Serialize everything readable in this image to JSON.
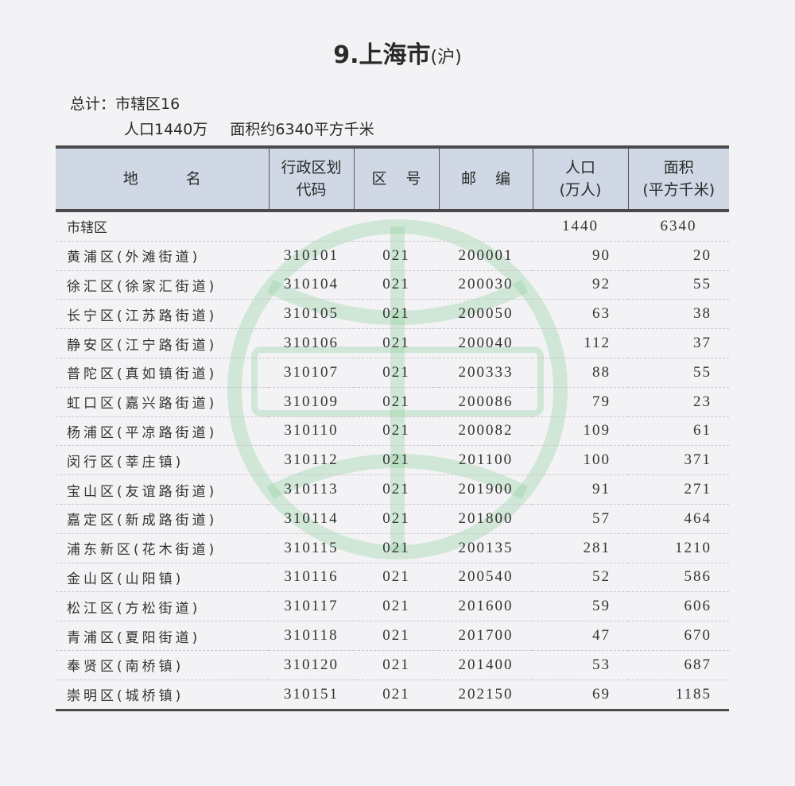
{
  "title": {
    "main": "9.上海市",
    "abbr": "(沪)"
  },
  "summary": {
    "line1": "总计：市辖区16",
    "population": "人口1440万",
    "area": "面积约6340平方千米"
  },
  "watermark": {
    "color": "#8fcf9a",
    "shape": "globe-seal-icon"
  },
  "table": {
    "headers": {
      "name": "地名",
      "code_line1": "行政区划",
      "code_line2": "代码",
      "area_code": "区 号",
      "zip": "邮 编",
      "pop_line1": "人口",
      "pop_line2": "(万人)",
      "area_line1": "面积",
      "area_line2": "(平方千米)"
    },
    "total": {
      "name": "市辖区",
      "population": "1440",
      "area": "6340"
    },
    "rows": [
      {
        "name": "黄浦区(外滩街道)",
        "code": "310101",
        "area_code": "021",
        "zip": "200001",
        "population": "90",
        "area": "20"
      },
      {
        "name": "徐汇区(徐家汇街道)",
        "code": "310104",
        "area_code": "021",
        "zip": "200030",
        "population": "92",
        "area": "55"
      },
      {
        "name": "长宁区(江苏路街道)",
        "code": "310105",
        "area_code": "021",
        "zip": "200050",
        "population": "63",
        "area": "38"
      },
      {
        "name": "静安区(江宁路街道)",
        "code": "310106",
        "area_code": "021",
        "zip": "200040",
        "population": "112",
        "area": "37"
      },
      {
        "name": "普陀区(真如镇街道)",
        "code": "310107",
        "area_code": "021",
        "zip": "200333",
        "population": "88",
        "area": "55"
      },
      {
        "name": "虹口区(嘉兴路街道)",
        "code": "310109",
        "area_code": "021",
        "zip": "200086",
        "population": "79",
        "area": "23"
      },
      {
        "name": "杨浦区(平凉路街道)",
        "code": "310110",
        "area_code": "021",
        "zip": "200082",
        "population": "109",
        "area": "61"
      },
      {
        "name": "闵行区(莘庄镇)",
        "code": "310112",
        "area_code": "021",
        "zip": "201100",
        "population": "100",
        "area": "371"
      },
      {
        "name": "宝山区(友谊路街道)",
        "code": "310113",
        "area_code": "021",
        "zip": "201900",
        "population": "91",
        "area": "271"
      },
      {
        "name": "嘉定区(新成路街道)",
        "code": "310114",
        "area_code": "021",
        "zip": "201800",
        "population": "57",
        "area": "464"
      },
      {
        "name": "浦东新区(花木街道)",
        "code": "310115",
        "area_code": "021",
        "zip": "200135",
        "population": "281",
        "area": "1210"
      },
      {
        "name": "金山区(山阳镇)",
        "code": "310116",
        "area_code": "021",
        "zip": "200540",
        "population": "52",
        "area": "586"
      },
      {
        "name": "松江区(方松街道)",
        "code": "310117",
        "area_code": "021",
        "zip": "201600",
        "population": "59",
        "area": "606"
      },
      {
        "name": "青浦区(夏阳街道)",
        "code": "310118",
        "area_code": "021",
        "zip": "201700",
        "population": "47",
        "area": "670"
      },
      {
        "name": "奉贤区(南桥镇)",
        "code": "310120",
        "area_code": "021",
        "zip": "201400",
        "population": "53",
        "area": "687"
      },
      {
        "name": "崇明区(城桥镇)",
        "code": "310151",
        "area_code": "021",
        "zip": "202150",
        "population": "69",
        "area": "1185"
      }
    ]
  }
}
